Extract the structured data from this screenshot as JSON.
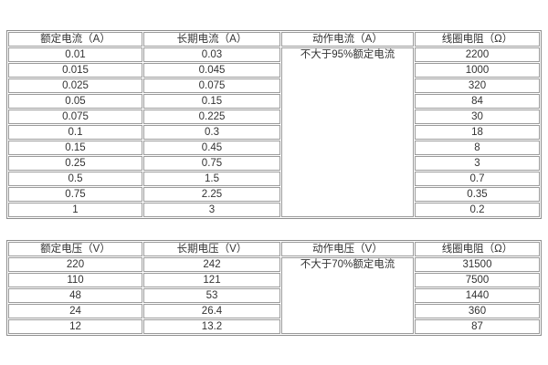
{
  "page": {
    "background": "#ffffff"
  },
  "colors": {
    "table_border": "#8e8e8e",
    "cell_border": "#9b9b9b",
    "text": "#333333"
  },
  "tables": [
    {
      "name": "current-spec-table",
      "columns": [
        "额定电流（A）",
        "长期电流（A）",
        "动作电流（A）",
        "线圈电阻（Ω）"
      ],
      "merged_cell": {
        "column_index": 2,
        "text": "不大于95%额定电流"
      },
      "rows": [
        [
          "0.01",
          "0.03",
          "2200"
        ],
        [
          "0.015",
          "0.045",
          "1000"
        ],
        [
          "0.025",
          "0.075",
          "320"
        ],
        [
          "0.05",
          "0.15",
          "84"
        ],
        [
          "0.075",
          "0.225",
          "30"
        ],
        [
          "0.1",
          "0.3",
          "18"
        ],
        [
          "0.15",
          "0.45",
          "8"
        ],
        [
          "0.25",
          "0.75",
          "3"
        ],
        [
          "0.5",
          "1.5",
          "0.7"
        ],
        [
          "0.75",
          "2.25",
          "0.35"
        ],
        [
          "1",
          "3",
          "0.2"
        ]
      ]
    },
    {
      "name": "voltage-spec-table",
      "columns": [
        "额定电压（V）",
        "长期电压（V）",
        "动作电压（V）",
        "线圈电阻（Ω）"
      ],
      "merged_cell": {
        "column_index": 2,
        "text": "不大于70%额定电流"
      },
      "rows": [
        [
          "220",
          "242",
          "31500"
        ],
        [
          "110",
          "121",
          "7500"
        ],
        [
          "48",
          "53",
          "1440"
        ],
        [
          "24",
          "26.4",
          "360"
        ],
        [
          "12",
          "13.2",
          "87"
        ]
      ]
    }
  ]
}
